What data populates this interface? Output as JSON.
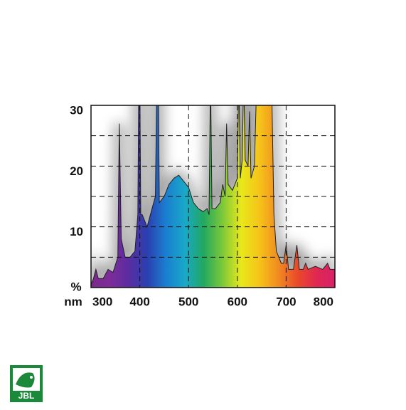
{
  "chart_data": {
    "type": "area",
    "x_label": "nm",
    "y_label": "%",
    "x": [
      300,
      305,
      310,
      315,
      325,
      335,
      345,
      355,
      358,
      362,
      370,
      380,
      390,
      396,
      398,
      400,
      402,
      405,
      415,
      425,
      432,
      435,
      438,
      440,
      450,
      460,
      470,
      480,
      490,
      500,
      510,
      520,
      530,
      538,
      542,
      545,
      548,
      555,
      565,
      570,
      575,
      578,
      581,
      590,
      600,
      603,
      606,
      610,
      613,
      616,
      622,
      625,
      628,
      635,
      640,
      650,
      660,
      670,
      675,
      680,
      690,
      695,
      700,
      705,
      715,
      722,
      727,
      735,
      740,
      745,
      760,
      775,
      785,
      790,
      800
    ],
    "values": [
      0.5,
      1.5,
      3,
      1.5,
      1.5,
      3,
      2.5,
      5,
      27,
      8,
      5,
      5,
      6,
      12,
      35,
      35,
      12,
      12,
      10,
      13,
      15,
      35,
      35,
      14,
      15,
      17,
      18,
      18.5,
      17.5,
      16.5,
      14,
      13,
      12.5,
      13,
      12,
      35,
      13,
      13,
      14,
      17,
      15,
      27,
      17,
      16,
      18,
      35,
      18,
      21,
      35,
      21,
      20,
      29,
      18,
      20,
      35,
      35,
      35,
      35,
      12,
      6,
      4,
      4,
      7,
      3,
      3,
      7,
      3,
      3,
      4,
      3,
      3.5,
      3,
      4,
      3,
      3
    ],
    "gradient": [
      "#7a2a8a",
      "#7e2c9a",
      "#5a2ca0",
      "#2b3fb0",
      "#1a7fd0",
      "#19a8c8",
      "#22a860",
      "#7cc83a",
      "#e8e81a",
      "#f6c21a",
      "#f08a20",
      "#ea4a2a",
      "#e02850",
      "#d8206a"
    ],
    "xlim": [
      300,
      800
    ],
    "ylim": [
      0,
      30
    ],
    "xticks": [
      300,
      400,
      500,
      600,
      700,
      800
    ],
    "yticks": [
      10,
      20,
      30
    ],
    "x_gridlines": [
      400,
      500,
      600,
      700
    ],
    "y_gridlines": [
      5,
      10,
      15,
      20,
      25
    ]
  },
  "logo_text": "JBL"
}
